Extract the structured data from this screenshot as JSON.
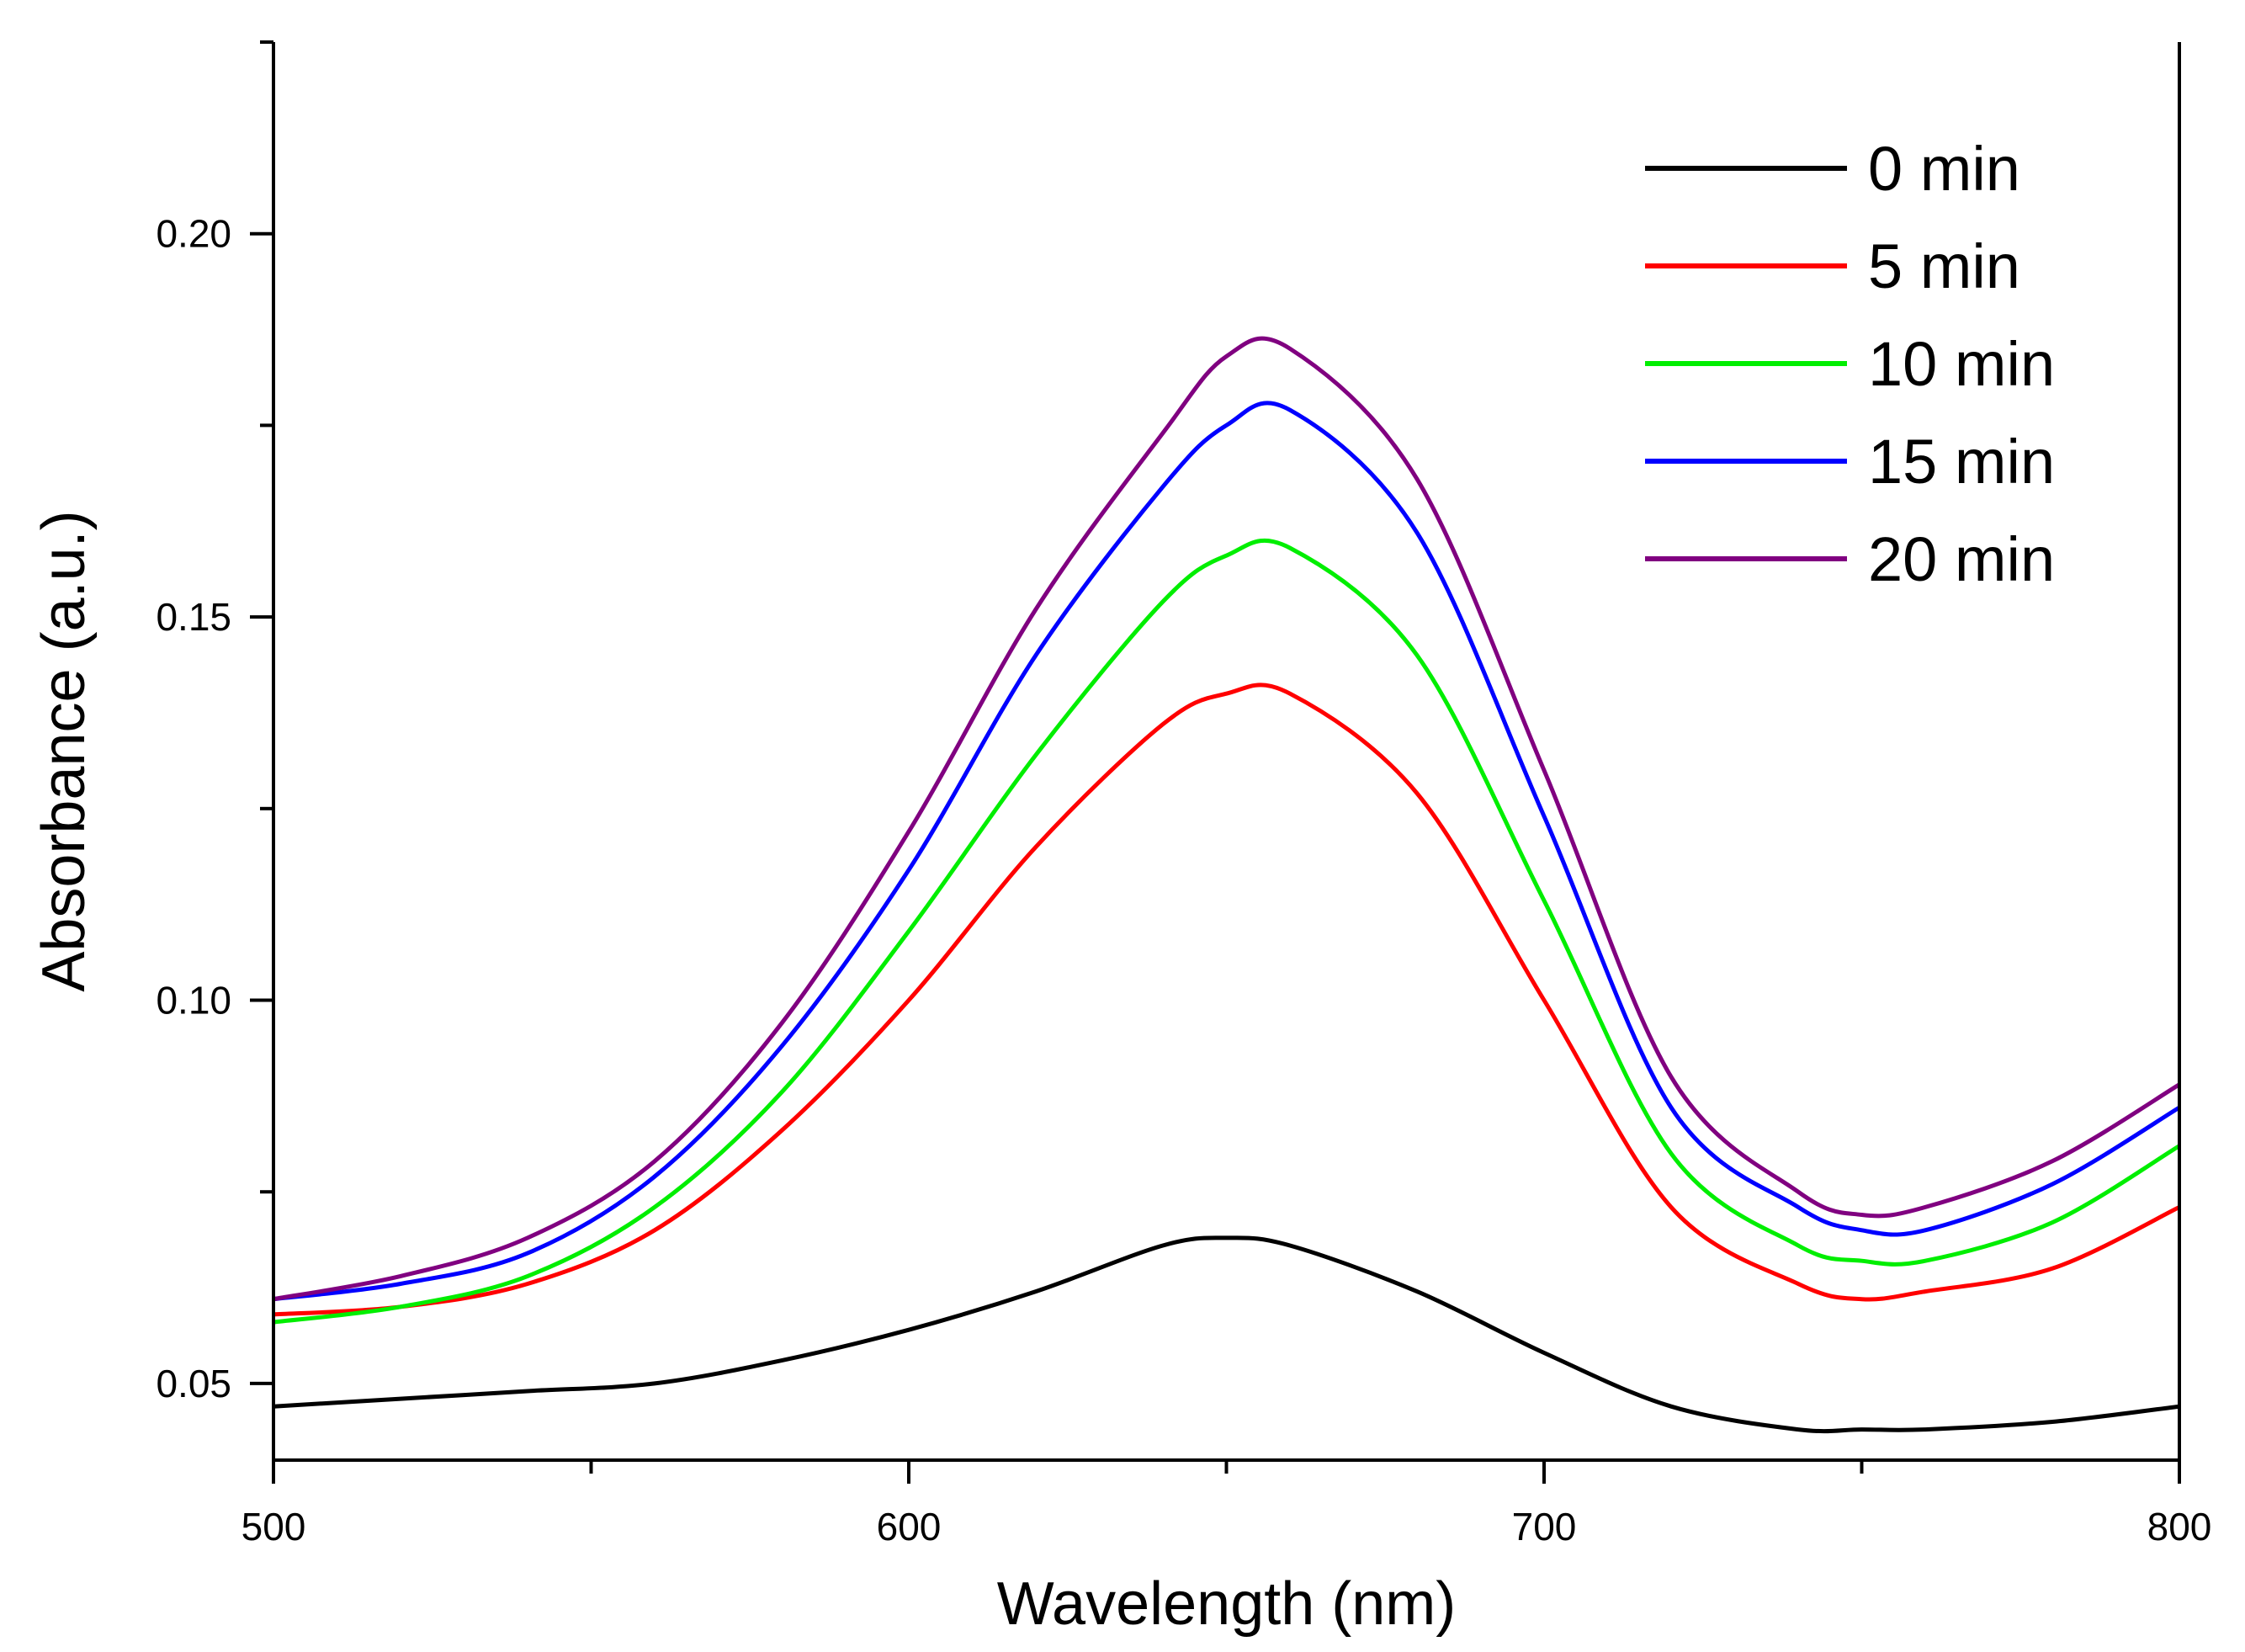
{
  "chart_data": {
    "type": "line",
    "title": "",
    "xlabel": "Wavelength (nm)",
    "ylabel": "Absorbance (a.u.)",
    "xlim": [
      500,
      800
    ],
    "ylim": [
      0.04,
      0.225
    ],
    "xticks": [
      500,
      600,
      700,
      800
    ],
    "xtick_labels": [
      "500",
      "600",
      "700",
      "800"
    ],
    "yticks": [
      0.05,
      0.1,
      0.15,
      0.2
    ],
    "ytick_labels": [
      "0.05",
      "0.10",
      "0.15",
      "0.20"
    ],
    "grid": false,
    "legend_position": "top-right",
    "x": [
      500,
      520,
      540,
      560,
      580,
      600,
      620,
      640,
      650,
      660,
      680,
      700,
      720,
      740,
      750,
      760,
      780,
      800
    ],
    "series": [
      {
        "name": "0 min",
        "color": "#000000",
        "values": [
          0.047,
          0.048,
          0.049,
          0.05,
          0.053,
          0.057,
          0.062,
          0.068,
          0.069,
          0.068,
          0.062,
          0.054,
          0.047,
          0.044,
          0.044,
          0.044,
          0.045,
          0.047
        ]
      },
      {
        "name": "5 min",
        "color": "#ff0000",
        "values": [
          0.059,
          0.06,
          0.063,
          0.07,
          0.083,
          0.1,
          0.12,
          0.136,
          0.14,
          0.14,
          0.127,
          0.1,
          0.073,
          0.063,
          0.061,
          0.062,
          0.065,
          0.073
        ]
      },
      {
        "name": "10 min",
        "color": "#00ee00",
        "values": [
          0.058,
          0.06,
          0.064,
          0.073,
          0.088,
          0.109,
          0.132,
          0.152,
          0.158,
          0.159,
          0.145,
          0.113,
          0.08,
          0.068,
          0.066,
          0.066,
          0.071,
          0.081
        ]
      },
      {
        "name": "15 min",
        "color": "#0000ff",
        "values": [
          0.061,
          0.063,
          0.067,
          0.077,
          0.094,
          0.117,
          0.145,
          0.167,
          0.175,
          0.177,
          0.161,
          0.124,
          0.086,
          0.073,
          0.07,
          0.07,
          0.076,
          0.086
        ]
      },
      {
        "name": "20 min",
        "color": "#800080",
        "values": [
          0.061,
          0.064,
          0.069,
          0.079,
          0.097,
          0.122,
          0.151,
          0.174,
          0.184,
          0.185,
          0.168,
          0.13,
          0.09,
          0.075,
          0.072,
          0.073,
          0.079,
          0.089
        ]
      }
    ]
  }
}
